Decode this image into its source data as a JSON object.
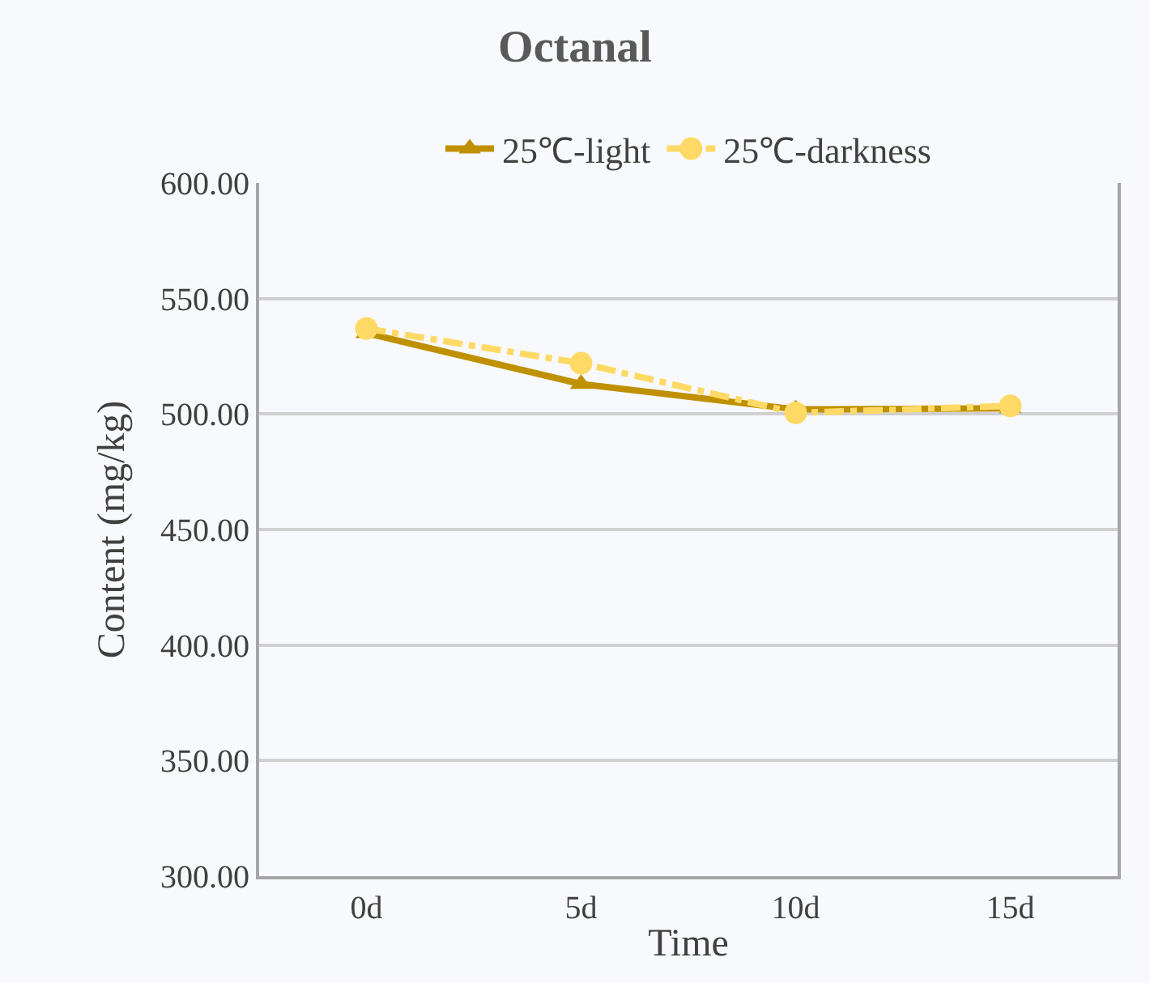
{
  "chart_data": {
    "type": "line",
    "title": "Octanal",
    "xlabel": "Time",
    "ylabel": "Content (mg/kg)",
    "categories": [
      "0d",
      "5d",
      "10d",
      "15d"
    ],
    "series": [
      {
        "name": "25℃-light",
        "color": "#bf9000",
        "values": [
          535,
          513,
          502,
          502.5
        ],
        "marker": "triangle",
        "line_style": "solid"
      },
      {
        "name": "25℃-darkness",
        "color": "#ffd966",
        "values": [
          537,
          522,
          500.5,
          503.5
        ],
        "marker": "circle",
        "line_style": "dashdot"
      }
    ],
    "ylim": [
      300,
      600
    ],
    "yticks": [
      {
        "value": 300,
        "label": "300.00"
      },
      {
        "value": 350,
        "label": "350.00"
      },
      {
        "value": 400,
        "label": "400.00"
      },
      {
        "value": 450,
        "label": "450.00"
      },
      {
        "value": 500,
        "label": "500.00"
      },
      {
        "value": 550,
        "label": "550.00"
      },
      {
        "value": 600,
        "label": "600.00"
      }
    ],
    "grid": "y",
    "legend": "top"
  }
}
